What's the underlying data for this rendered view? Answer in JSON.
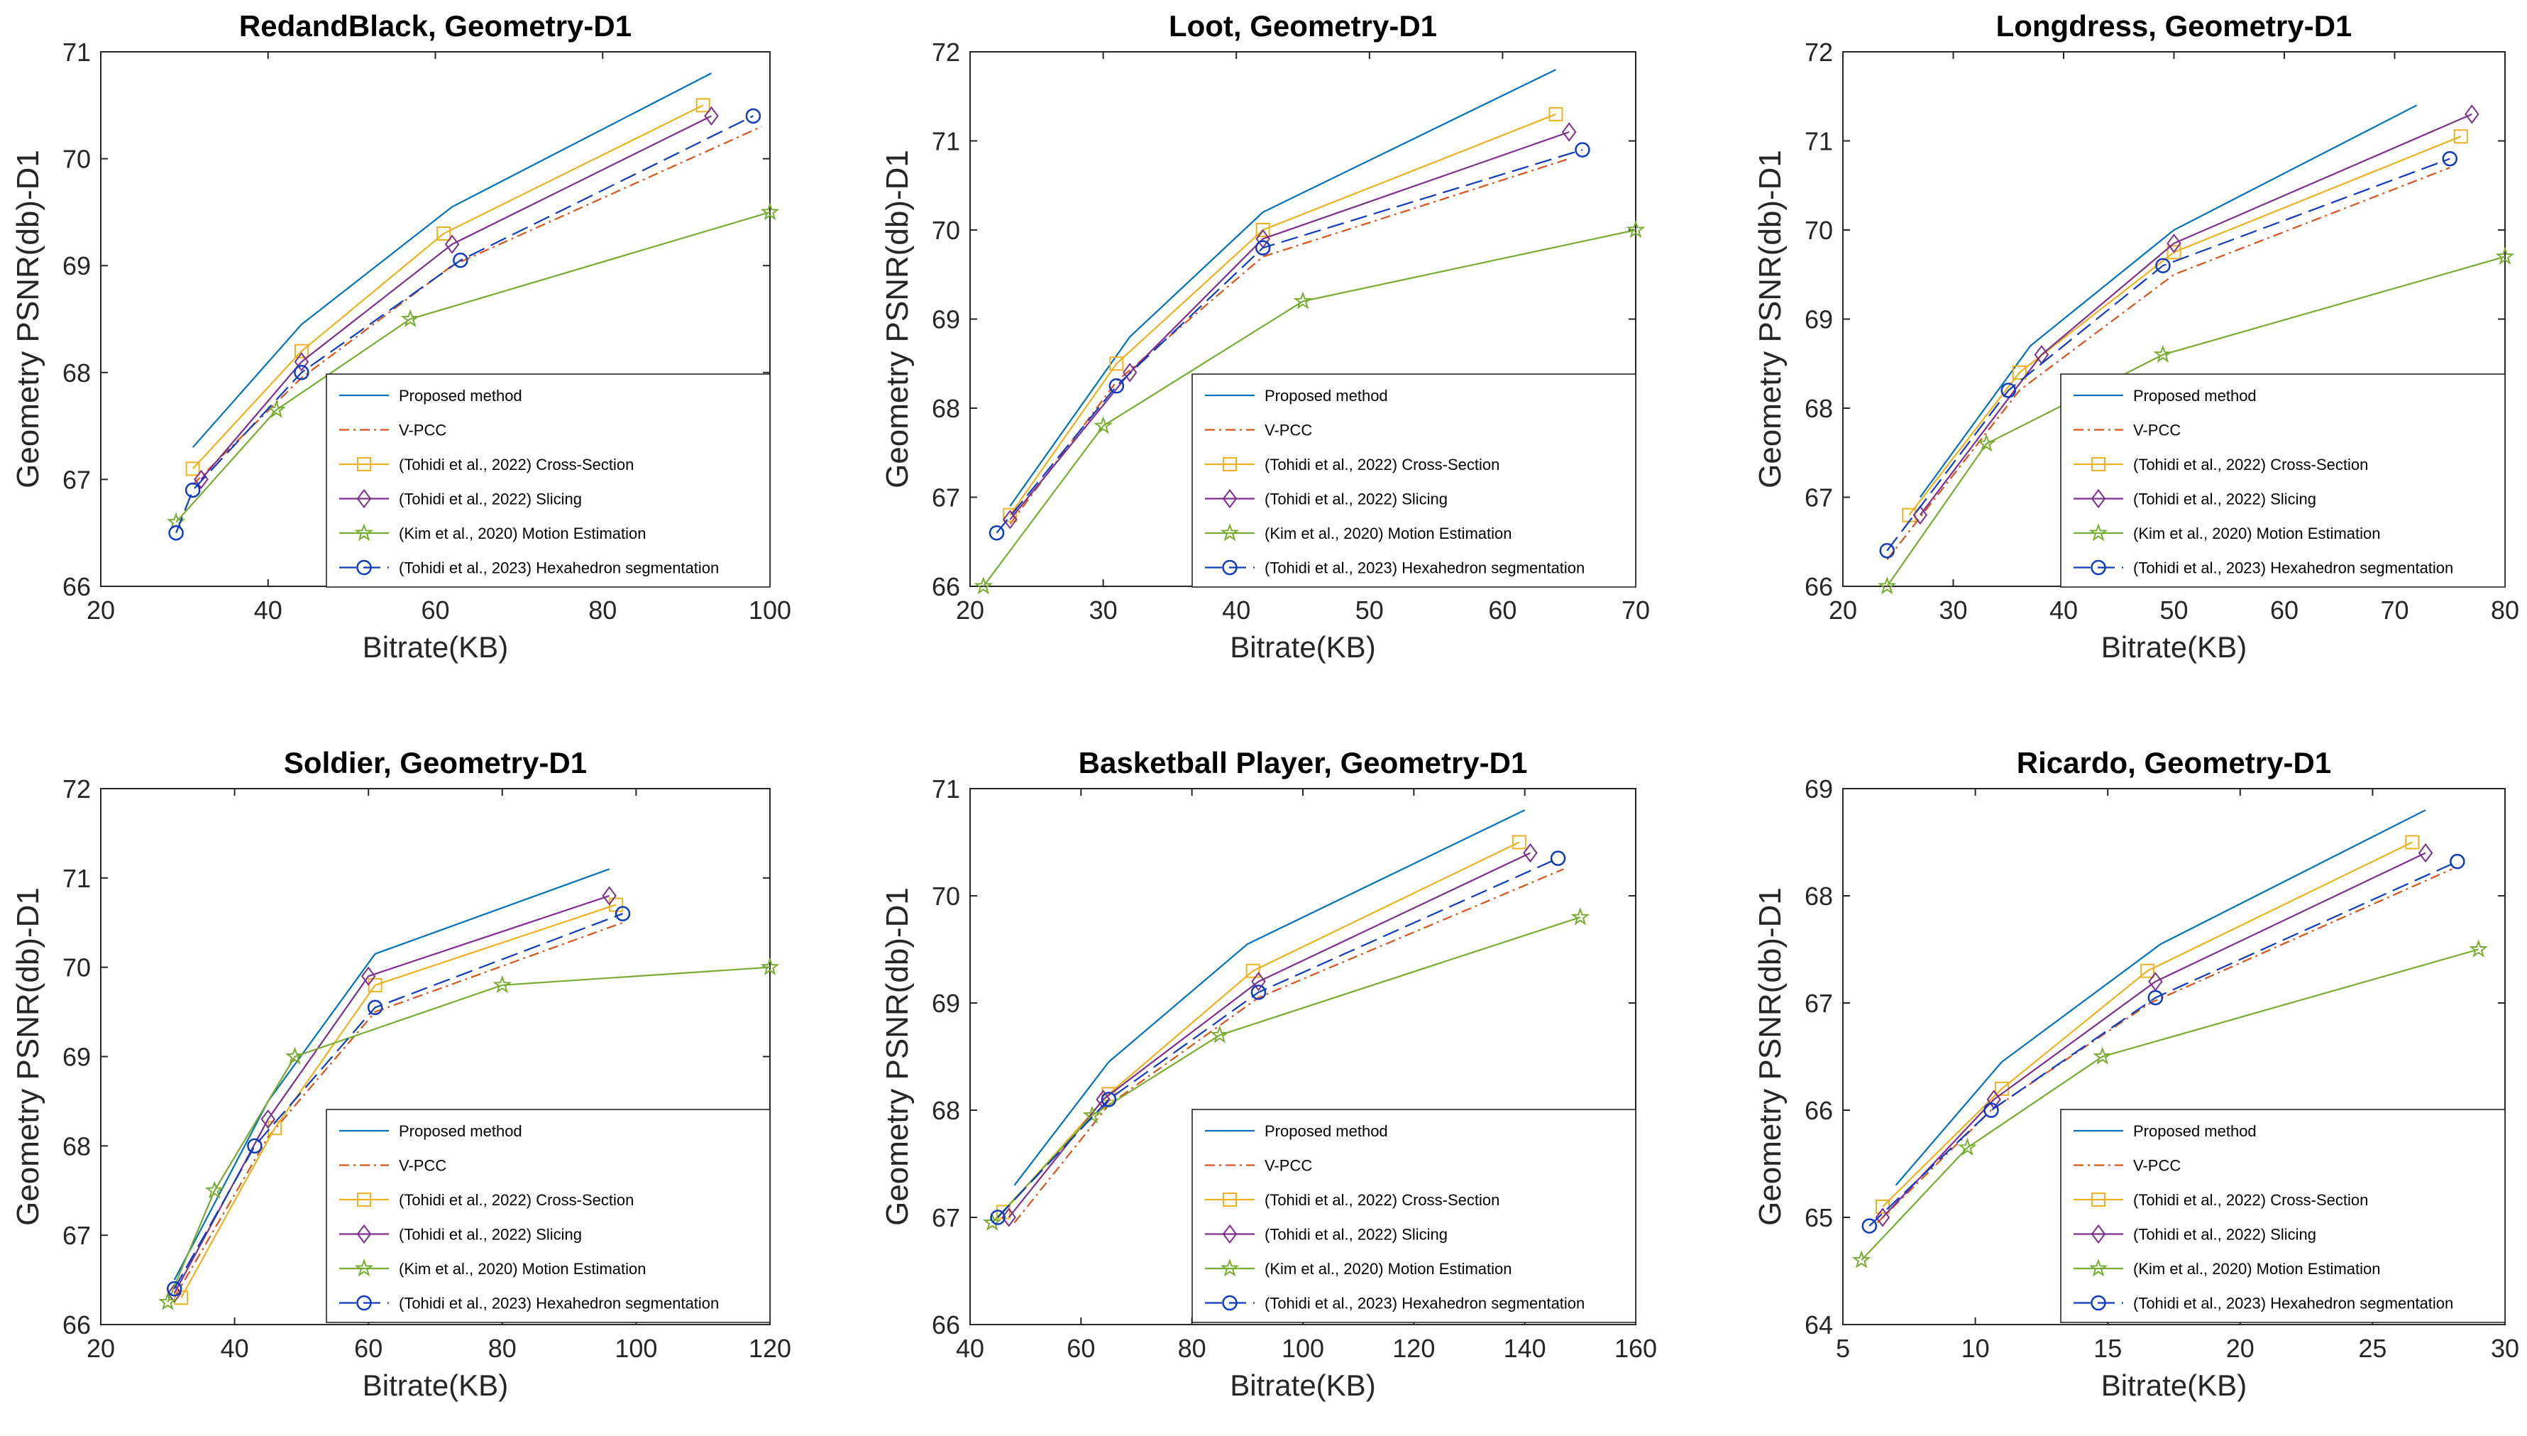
{
  "series_styles": [
    {
      "color": "#0072BD",
      "dash": "",
      "marker": "none"
    },
    {
      "color": "#D95319",
      "dash": "14 6 3 6",
      "marker": "none"
    },
    {
      "color": "#EDB120",
      "dash": "",
      "marker": "square"
    },
    {
      "color": "#7E2F8E",
      "dash": "",
      "marker": "diamond"
    },
    {
      "color": "#77AC30",
      "dash": "",
      "marker": "star"
    },
    {
      "color": "#0E3BC0",
      "dash": "24 10",
      "marker": "circle"
    }
  ],
  "series_names": [
    "Proposed method",
    "V-PCC",
    "(Tohidi et al., 2022) Cross-Section",
    "(Tohidi et al., 2022) Slicing",
    "(Kim et al., 2020) Motion Estimation",
    "(Tohidi et al., 2023) Hexahedron segmentation"
  ],
  "chart_data": [
    {
      "type": "line",
      "title": "RedandBlack, Geometry-D1",
      "xlabel": "Bitrate(KB)",
      "ylabel": "Geometry PSNR(db)-D1",
      "xlim": [
        20,
        100
      ],
      "ylim": [
        66,
        71
      ],
      "xticks": [
        20,
        40,
        60,
        80,
        100
      ],
      "yticks": [
        66,
        67,
        68,
        69,
        70,
        71
      ],
      "series": [
        {
          "name": "Proposed method",
          "x": [
            31,
            44,
            62,
            93
          ],
          "y": [
            67.3,
            68.45,
            69.55,
            70.8
          ]
        },
        {
          "name": "V-PCC",
          "x": [
            31,
            44,
            62,
            99
          ],
          "y": [
            66.95,
            67.95,
            69.0,
            70.3
          ]
        },
        {
          "name": "(Tohidi et al., 2022) Cross-Section",
          "x": [
            31,
            44,
            61,
            92
          ],
          "y": [
            67.1,
            68.2,
            69.3,
            70.5
          ]
        },
        {
          "name": "(Tohidi et al., 2022) Slicing",
          "x": [
            32,
            44,
            62,
            93
          ],
          "y": [
            67.0,
            68.1,
            69.2,
            70.4
          ]
        },
        {
          "name": "(Kim et al., 2020) Motion Estimation",
          "x": [
            29,
            41,
            57,
            100
          ],
          "y": [
            66.6,
            67.65,
            68.5,
            69.5
          ]
        },
        {
          "name": "(Tohidi et al., 2023) Hexahedron segmentation",
          "x": [
            29,
            31,
            44,
            63,
            98
          ],
          "y": [
            66.5,
            66.9,
            68.0,
            69.05,
            70.4
          ]
        }
      ]
    },
    {
      "type": "line",
      "title": "Loot, Geometry-D1",
      "xlabel": "Bitrate(KB)",
      "ylabel": "Geometry PSNR(db)-D1",
      "xlim": [
        20,
        70
      ],
      "ylim": [
        66,
        72
      ],
      "xticks": [
        20,
        30,
        40,
        50,
        60,
        70
      ],
      "yticks": [
        66,
        67,
        68,
        69,
        70,
        71,
        72
      ],
      "series": [
        {
          "name": "Proposed method",
          "x": [
            23,
            32,
            42,
            64
          ],
          "y": [
            66.9,
            68.8,
            70.2,
            71.8
          ]
        },
        {
          "name": "V-PCC",
          "x": [
            23,
            31,
            42,
            65
          ],
          "y": [
            66.7,
            68.3,
            69.7,
            70.8
          ]
        },
        {
          "name": "(Tohidi et al., 2022) Cross-Section",
          "x": [
            23,
            31,
            42,
            64
          ],
          "y": [
            66.8,
            68.5,
            70.0,
            71.3
          ]
        },
        {
          "name": "(Tohidi et al., 2022) Slicing",
          "x": [
            23,
            32,
            42,
            65
          ],
          "y": [
            66.75,
            68.4,
            69.9,
            71.1
          ]
        },
        {
          "name": "(Kim et al., 2020) Motion Estimation",
          "x": [
            21,
            30,
            45,
            70
          ],
          "y": [
            66.0,
            67.8,
            69.2,
            70.0
          ]
        },
        {
          "name": "(Tohidi et al., 2023) Hexahedron segmentation",
          "x": [
            22,
            31,
            42,
            66
          ],
          "y": [
            66.6,
            68.25,
            69.8,
            70.9
          ]
        }
      ]
    },
    {
      "type": "line",
      "title": "Longdress, Geometry-D1",
      "xlabel": "Bitrate(KB)",
      "ylabel": "Geometry PSNR(db)-D1",
      "xlim": [
        20,
        80
      ],
      "ylim": [
        66,
        72
      ],
      "xticks": [
        20,
        30,
        40,
        50,
        60,
        70,
        80
      ],
      "yticks": [
        66,
        67,
        68,
        69,
        70,
        71,
        72
      ],
      "series": [
        {
          "name": "Proposed method",
          "x": [
            27,
            37,
            50,
            72
          ],
          "y": [
            67.0,
            68.7,
            70.0,
            71.4
          ]
        },
        {
          "name": "V-PCC",
          "x": [
            24,
            36,
            50,
            75
          ],
          "y": [
            66.3,
            68.2,
            69.5,
            70.7
          ]
        },
        {
          "name": "(Tohidi et al., 2022) Cross-Section",
          "x": [
            26,
            36,
            50,
            76
          ],
          "y": [
            66.8,
            68.4,
            69.75,
            71.05
          ]
        },
        {
          "name": "(Tohidi et al., 2022) Slicing",
          "x": [
            27,
            38,
            50,
            77
          ],
          "y": [
            66.8,
            68.6,
            69.85,
            71.3
          ]
        },
        {
          "name": "(Kim et al., 2020) Motion Estimation",
          "x": [
            24,
            33,
            49,
            80
          ],
          "y": [
            66.0,
            67.6,
            68.6,
            69.7
          ]
        },
        {
          "name": "(Tohidi et al., 2023) Hexahedron segmentation",
          "x": [
            24,
            35,
            49,
            75
          ],
          "y": [
            66.4,
            68.2,
            69.6,
            70.8
          ]
        }
      ]
    },
    {
      "type": "line",
      "title": "Soldier, Geometry-D1",
      "xlabel": "Bitrate(KB)",
      "ylabel": "Geometry PSNR(db)-D1",
      "xlim": [
        20,
        120
      ],
      "ylim": [
        66,
        72
      ],
      "xticks": [
        20,
        40,
        60,
        80,
        100,
        120
      ],
      "yticks": [
        66,
        67,
        68,
        69,
        70,
        71,
        72
      ],
      "series": [
        {
          "name": "Proposed method",
          "x": [
            31,
            45,
            61,
            96
          ],
          "y": [
            66.5,
            68.5,
            70.15,
            71.1
          ]
        },
        {
          "name": "V-PCC",
          "x": [
            31,
            45,
            61,
            98
          ],
          "y": [
            66.3,
            68.1,
            69.5,
            70.5
          ]
        },
        {
          "name": "(Tohidi et al., 2022) Cross-Section",
          "x": [
            32,
            46,
            61,
            97
          ],
          "y": [
            66.3,
            68.2,
            69.8,
            70.7
          ]
        },
        {
          "name": "(Tohidi et al., 2022) Slicing",
          "x": [
            31,
            45,
            60,
            96
          ],
          "y": [
            66.35,
            68.3,
            69.9,
            70.8
          ]
        },
        {
          "name": "(Kim et al., 2020) Motion Estimation",
          "x": [
            30,
            37,
            49,
            80,
            120
          ],
          "y": [
            66.25,
            67.5,
            69.0,
            69.8,
            70.0
          ]
        },
        {
          "name": "(Tohidi et al., 2023) Hexahedron segmentation",
          "x": [
            31,
            43,
            61,
            98
          ],
          "y": [
            66.4,
            68.0,
            69.55,
            70.6
          ]
        }
      ]
    },
    {
      "type": "line",
      "title": "Basketball Player, Geometry-D1",
      "xlabel": "Bitrate(KB)",
      "ylabel": "Geometry PSNR(db)-D1",
      "xlim": [
        40,
        160
      ],
      "ylim": [
        66,
        71
      ],
      "xticks": [
        40,
        60,
        80,
        100,
        120,
        140,
        160
      ],
      "yticks": [
        66,
        67,
        68,
        69,
        70,
        71
      ],
      "series": [
        {
          "name": "Proposed method",
          "x": [
            48,
            65,
            90,
            140
          ],
          "y": [
            67.3,
            68.45,
            69.55,
            70.8
          ]
        },
        {
          "name": "V-PCC",
          "x": [
            48,
            65,
            92,
            147
          ],
          "y": [
            66.95,
            68.05,
            69.05,
            70.25
          ]
        },
        {
          "name": "(Tohidi et al., 2022) Cross-Section",
          "x": [
            46,
            65,
            91,
            139
          ],
          "y": [
            67.05,
            68.15,
            69.3,
            70.5
          ]
        },
        {
          "name": "(Tohidi et al., 2022) Slicing",
          "x": [
            47,
            64,
            92,
            141
          ],
          "y": [
            67.0,
            68.1,
            69.2,
            70.4
          ]
        },
        {
          "name": "(Kim et al., 2020) Motion Estimation",
          "x": [
            44,
            62,
            85,
            150
          ],
          "y": [
            66.95,
            67.95,
            68.7,
            69.8
          ]
        },
        {
          "name": "(Tohidi et al., 2023) Hexahedron segmentation",
          "x": [
            45,
            65,
            92,
            146
          ],
          "y": [
            67.0,
            68.1,
            69.1,
            70.35
          ]
        }
      ]
    },
    {
      "type": "line",
      "title": "Ricardo, Geometry-D1",
      "xlabel": "Bitrate(KB)",
      "ylabel": "Geometry PSNR(db)-D1",
      "xlim": [
        5,
        30
      ],
      "ylim": [
        64,
        69
      ],
      "xticks": [
        5,
        10,
        15,
        20,
        25,
        30
      ],
      "yticks": [
        64,
        65,
        66,
        67,
        68,
        69
      ],
      "series": [
        {
          "name": "Proposed method",
          "x": [
            7,
            11,
            17,
            27
          ],
          "y": [
            65.3,
            66.45,
            67.55,
            68.8
          ]
        },
        {
          "name": "V-PCC",
          "x": [
            6.3,
            10.6,
            16.6,
            28
          ],
          "y": [
            64.95,
            66.0,
            67.0,
            68.25
          ]
        },
        {
          "name": "(Tohidi et al., 2022) Cross-Section",
          "x": [
            6.5,
            11,
            16.5,
            26.5
          ],
          "y": [
            65.1,
            66.2,
            67.3,
            68.5
          ]
        },
        {
          "name": "(Tohidi et al., 2022) Slicing",
          "x": [
            6.5,
            10.7,
            16.8,
            27
          ],
          "y": [
            65.0,
            66.1,
            67.2,
            68.4
          ]
        },
        {
          "name": "(Kim et al., 2020) Motion Estimation",
          "x": [
            5.7,
            9.7,
            14.8,
            29
          ],
          "y": [
            64.6,
            65.65,
            66.5,
            67.5
          ]
        },
        {
          "name": "(Tohidi et al., 2023) Hexahedron segmentation",
          "x": [
            6,
            10.6,
            16.8,
            28.2
          ],
          "y": [
            64.92,
            66.0,
            67.05,
            68.32
          ]
        }
      ]
    }
  ]
}
